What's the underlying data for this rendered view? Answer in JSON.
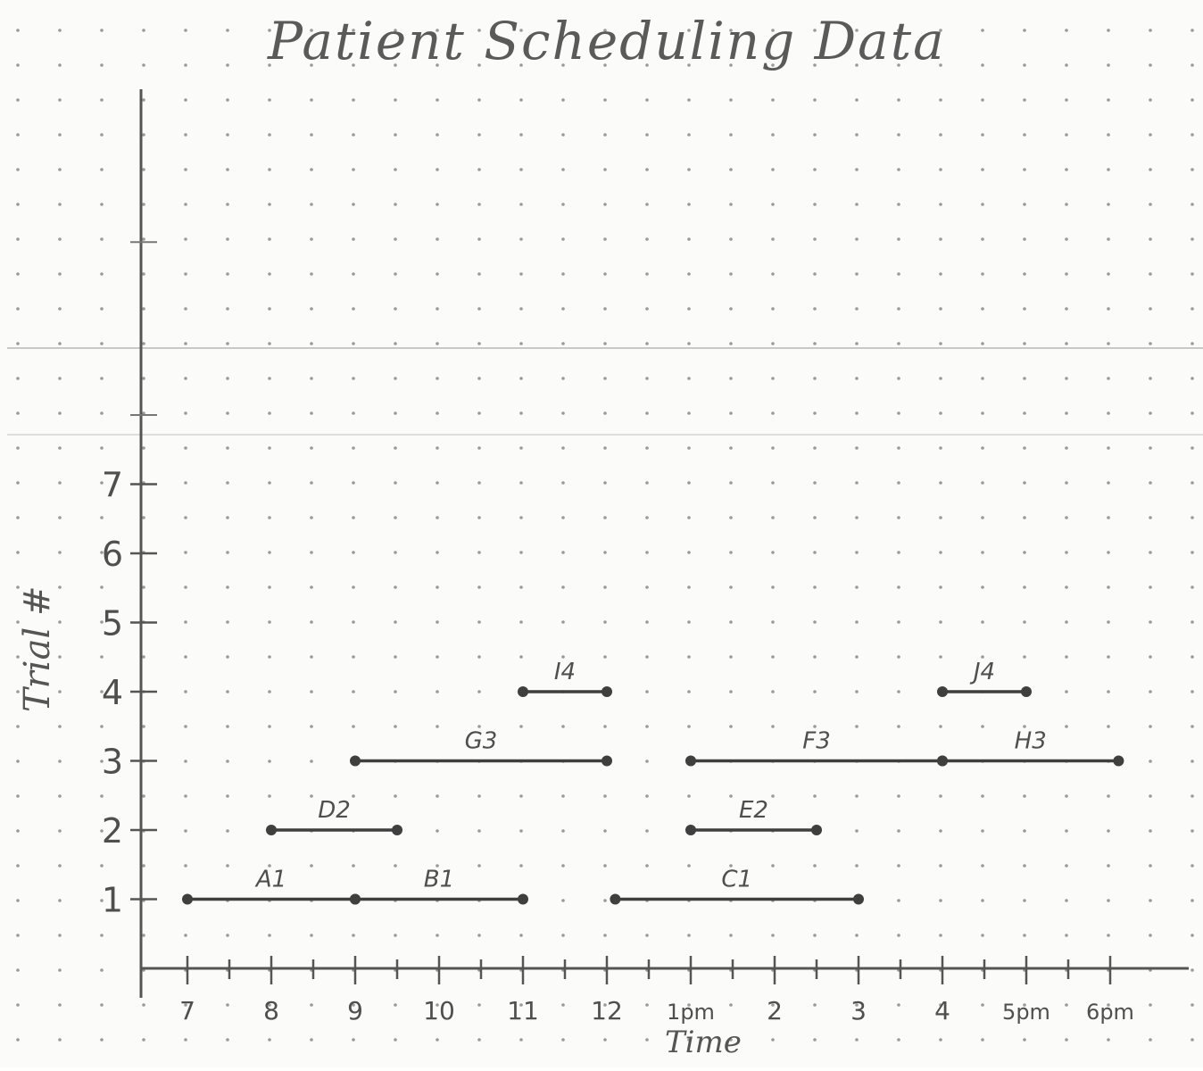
{
  "chart_data": {
    "type": "gantt",
    "title": "Patient Scheduling Data",
    "xlabel": "Time",
    "ylabel": "Trial #",
    "x_tick_labels": [
      "7",
      "8",
      "9",
      "10",
      "11",
      "12",
      "1pm",
      "2",
      "3",
      "4",
      "5pm",
      "6pm"
    ],
    "x_tick_hours": [
      7,
      8,
      9,
      10,
      11,
      12,
      13,
      14,
      15,
      16,
      17,
      18
    ],
    "y_tick_labels": [
      "1",
      "2",
      "3",
      "4",
      "5",
      "6",
      "7"
    ],
    "y_ticks": [
      1,
      2,
      3,
      4,
      5,
      6,
      7
    ],
    "xlim": [
      6.5,
      18.6
    ],
    "ylim": [
      0,
      10.5
    ],
    "grid": "dot grid",
    "intervals": [
      {
        "label": "A1",
        "trial": 1,
        "start": 7.0,
        "end": 9.0
      },
      {
        "label": "B1",
        "trial": 1,
        "start": 9.0,
        "end": 11.0
      },
      {
        "label": "C1",
        "trial": 1,
        "start": 12.1,
        "end": 15.0
      },
      {
        "label": "D2",
        "trial": 2,
        "start": 8.0,
        "end": 9.5
      },
      {
        "label": "E2",
        "trial": 2,
        "start": 13.0,
        "end": 14.5
      },
      {
        "label": "G3",
        "trial": 3,
        "start": 9.0,
        "end": 12.0
      },
      {
        "label": "F3",
        "trial": 3,
        "start": 13.0,
        "end": 16.0
      },
      {
        "label": "H3",
        "trial": 3,
        "start": 16.0,
        "end": 18.1
      },
      {
        "label": "I4",
        "trial": 4,
        "start": 11.0,
        "end": 12.0
      },
      {
        "label": "J4",
        "trial": 4,
        "start": 16.0,
        "end": 17.0
      }
    ]
  }
}
